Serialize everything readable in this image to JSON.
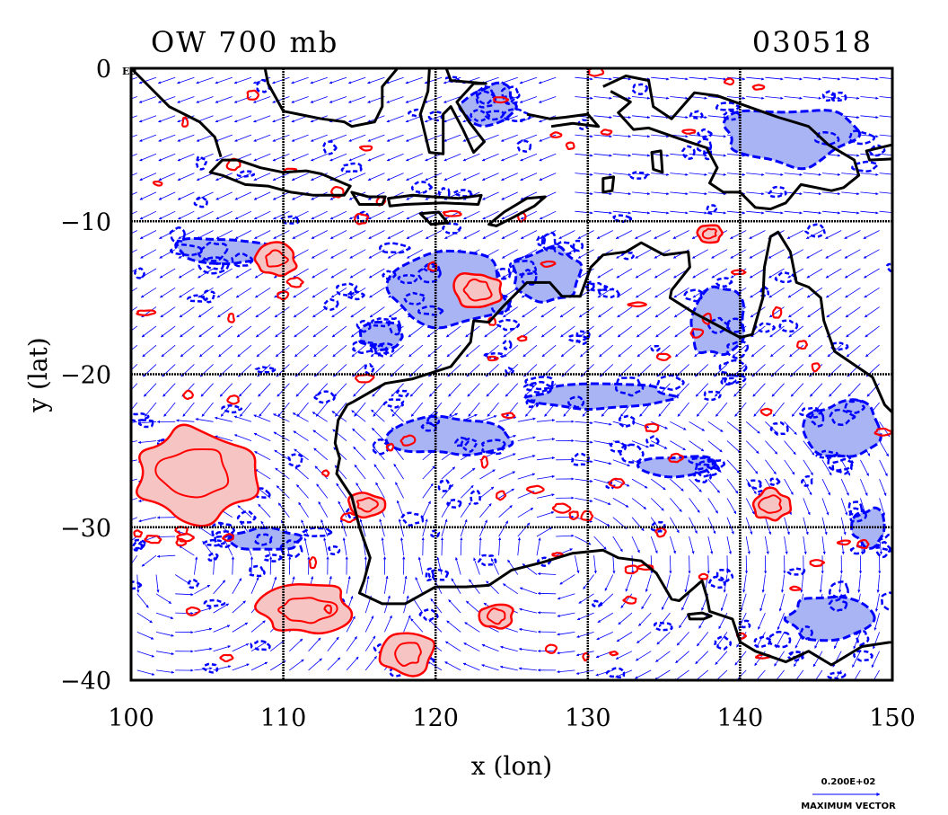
{
  "plot": {
    "title": "OW 700 mb",
    "date": "030518",
    "xlabel": "x (lon)",
    "ylabel": "y (lat)",
    "origin_label": "E0",
    "vector_legend_value": "0.200E+02",
    "vector_legend_label": "MAXIMUM VECTOR"
  },
  "colors": {
    "coastline": "#000000",
    "negative_contour": "#0000ff",
    "negative_fill": "#a9b4f5",
    "positive_contour": "#ff0000",
    "positive_fill": "#f7c4c4",
    "vectors": "#0000ff",
    "grid": "#000000"
  },
  "chart_data": {
    "type": "contour-map",
    "xlim": [
      100,
      150
    ],
    "ylim": [
      -40,
      0
    ],
    "xticks": [
      100,
      110,
      120,
      130,
      140,
      150
    ],
    "xtick_labels": [
      "100",
      "110",
      "120",
      "130",
      "140",
      "150"
    ],
    "yticks": [
      0,
      -10,
      -20,
      -30,
      -40
    ],
    "ytick_labels": [
      "0",
      "−10",
      "−20",
      "−30",
      "−40"
    ],
    "grid": true,
    "grid_style": "dotted",
    "fields": [
      "Okubo-Weiss parameter contours",
      "wind vectors"
    ],
    "positive_regions": [
      {
        "lon": 122.8,
        "lat": -14.5,
        "rx": 1.6,
        "ry": 1.3
      },
      {
        "lon": 104.2,
        "lat": -26.5,
        "rx": 4.2,
        "ry": 3.2
      },
      {
        "lon": 111.5,
        "lat": -35.4,
        "rx": 3.2,
        "ry": 1.7
      },
      {
        "lon": 118.2,
        "lat": -38.2,
        "rx": 1.8,
        "ry": 1.5
      },
      {
        "lon": 124.0,
        "lat": -35.8,
        "rx": 1.2,
        "ry": 0.9
      },
      {
        "lon": 109.5,
        "lat": -12.5,
        "rx": 1.4,
        "ry": 1.0
      },
      {
        "lon": 142.0,
        "lat": -28.5,
        "rx": 1.3,
        "ry": 1.0
      },
      {
        "lon": 138.0,
        "lat": -10.8,
        "rx": 0.8,
        "ry": 0.6
      },
      {
        "lon": 115.5,
        "lat": -28.5,
        "rx": 1.2,
        "ry": 0.8
      }
    ],
    "negative_regions": [
      {
        "lon": 121.0,
        "lat": -14.5,
        "rx": 4.0,
        "ry": 2.5
      },
      {
        "lon": 127.5,
        "lat": -13.5,
        "rx": 2.5,
        "ry": 1.8
      },
      {
        "lon": 106.0,
        "lat": -12.0,
        "rx": 3.5,
        "ry": 1.0
      },
      {
        "lon": 143.0,
        "lat": -4.5,
        "rx": 4.5,
        "ry": 2.0
      },
      {
        "lon": 123.5,
        "lat": -2.5,
        "rx": 2.0,
        "ry": 1.5
      },
      {
        "lon": 138.5,
        "lat": -16.5,
        "rx": 2.0,
        "ry": 2.5
      },
      {
        "lon": 131.0,
        "lat": -21.5,
        "rx": 5.0,
        "ry": 0.8
      },
      {
        "lon": 121.0,
        "lat": -24.0,
        "rx": 4.0,
        "ry": 1.2
      },
      {
        "lon": 136.0,
        "lat": -26.0,
        "rx": 2.5,
        "ry": 0.7
      },
      {
        "lon": 147.0,
        "lat": -23.5,
        "rx": 2.5,
        "ry": 2.0
      },
      {
        "lon": 109.0,
        "lat": -30.8,
        "rx": 2.5,
        "ry": 0.7
      },
      {
        "lon": 146.0,
        "lat": -36.0,
        "rx": 3.0,
        "ry": 1.5
      },
      {
        "lon": 116.5,
        "lat": -17.5,
        "rx": 1.5,
        "ry": 0.9
      },
      {
        "lon": 148.5,
        "lat": -30.0,
        "rx": 1.2,
        "ry": 1.2
      }
    ],
    "coastlines": [
      {
        "name": "Australia",
        "closed": true,
        "points": [
          [
            114.2,
            -22.0
          ],
          [
            114.6,
            -21.8
          ],
          [
            116.7,
            -20.6
          ],
          [
            118.5,
            -20.3
          ],
          [
            121.0,
            -19.5
          ],
          [
            122.3,
            -17.9
          ],
          [
            122.5,
            -16.5
          ],
          [
            123.5,
            -16.6
          ],
          [
            124.5,
            -15.5
          ],
          [
            126.0,
            -14.0
          ],
          [
            127.5,
            -14.0
          ],
          [
            128.3,
            -14.9
          ],
          [
            129.5,
            -14.9
          ],
          [
            130.2,
            -13.0
          ],
          [
            131.0,
            -12.2
          ],
          [
            132.5,
            -12.0
          ],
          [
            133.5,
            -11.4
          ],
          [
            135.0,
            -12.2
          ],
          [
            136.6,
            -12.0
          ],
          [
            136.7,
            -13.0
          ],
          [
            135.5,
            -14.5
          ],
          [
            135.4,
            -15.0
          ],
          [
            137.0,
            -16.0
          ],
          [
            138.5,
            -16.8
          ],
          [
            140.0,
            -17.6
          ],
          [
            140.8,
            -17.4
          ],
          [
            141.5,
            -15.0
          ],
          [
            141.6,
            -13.0
          ],
          [
            142.0,
            -11.0
          ],
          [
            142.5,
            -10.7
          ],
          [
            143.3,
            -12.0
          ],
          [
            143.7,
            -14.0
          ],
          [
            144.5,
            -14.3
          ],
          [
            145.3,
            -15.0
          ],
          [
            145.5,
            -16.5
          ],
          [
            146.2,
            -18.5
          ],
          [
            148.7,
            -20.2
          ],
          [
            149.5,
            -22.0
          ],
          [
            150.0,
            -22.5
          ],
          [
            150.8,
            -23.5
          ],
          [
            153.0,
            -25.5
          ],
          [
            153.6,
            -28.5
          ],
          [
            153.0,
            -31.0
          ],
          [
            152.0,
            -33.0
          ],
          [
            150.8,
            -34.5
          ],
          [
            150.0,
            -37.5
          ],
          [
            148.0,
            -37.8
          ],
          [
            146.0,
            -39.0
          ],
          [
            144.5,
            -38.1
          ],
          [
            143.0,
            -38.8
          ],
          [
            141.0,
            -38.1
          ],
          [
            140.0,
            -37.5
          ],
          [
            139.5,
            -36.0
          ],
          [
            138.0,
            -35.5
          ],
          [
            137.8,
            -34.5
          ],
          [
            137.5,
            -33.5
          ],
          [
            136.0,
            -34.8
          ],
          [
            135.5,
            -34.7
          ],
          [
            134.5,
            -33.0
          ],
          [
            133.5,
            -32.2
          ],
          [
            132.0,
            -32.0
          ],
          [
            131.0,
            -31.5
          ],
          [
            129.0,
            -31.7
          ],
          [
            127.0,
            -32.3
          ],
          [
            125.0,
            -32.8
          ],
          [
            123.5,
            -33.8
          ],
          [
            122.0,
            -33.9
          ],
          [
            120.0,
            -33.9
          ],
          [
            118.0,
            -35.0
          ],
          [
            116.5,
            -35.0
          ],
          [
            115.0,
            -34.3
          ],
          [
            115.3,
            -33.5
          ],
          [
            115.7,
            -32.0
          ],
          [
            115.0,
            -30.0
          ],
          [
            114.5,
            -28.0
          ],
          [
            113.5,
            -26.5
          ],
          [
            113.7,
            -25.5
          ],
          [
            113.4,
            -24.5
          ],
          [
            113.6,
            -23.0
          ]
        ]
      },
      {
        "name": "Tasmania",
        "closed": true,
        "points": [
          [
            144.7,
            -40.7
          ],
          [
            146.5,
            -41.0
          ],
          [
            148.3,
            -40.9
          ],
          [
            148.2,
            -42.0
          ],
          [
            147.5,
            -43.2
          ],
          [
            146.0,
            -43.5
          ],
          [
            145.2,
            -42.3
          ]
        ]
      },
      {
        "name": "Kangaroo Island",
        "closed": true,
        "points": [
          [
            136.6,
            -35.7
          ],
          [
            137.5,
            -35.6
          ],
          [
            138.1,
            -35.8
          ],
          [
            137.6,
            -36.0
          ],
          [
            136.7,
            -36.0
          ]
        ]
      },
      {
        "name": "Sumatra",
        "closed": false,
        "points": [
          [
            100.0,
            0.0
          ],
          [
            100.5,
            -0.5
          ],
          [
            101.5,
            -1.5
          ],
          [
            102.5,
            -2.5
          ],
          [
            103.5,
            -3.0
          ],
          [
            104.5,
            -3.5
          ],
          [
            105.5,
            -4.5
          ],
          [
            105.9,
            -5.8
          ]
        ]
      },
      {
        "name": "Java",
        "closed": true,
        "points": [
          [
            105.2,
            -6.8
          ],
          [
            106.0,
            -6.0
          ],
          [
            107.0,
            -6.0
          ],
          [
            108.5,
            -6.5
          ],
          [
            110.0,
            -6.8
          ],
          [
            111.5,
            -6.7
          ],
          [
            112.5,
            -6.9
          ],
          [
            114.4,
            -7.7
          ],
          [
            114.0,
            -8.3
          ],
          [
            112.0,
            -8.3
          ],
          [
            110.5,
            -8.1
          ],
          [
            109.0,
            -7.7
          ],
          [
            107.5,
            -7.6
          ],
          [
            106.0,
            -7.0
          ]
        ]
      },
      {
        "name": "Borneo",
        "closed": false,
        "points": [
          [
            108.8,
            0.0
          ],
          [
            109.0,
            -1.0
          ],
          [
            110.0,
            -2.8
          ],
          [
            111.0,
            -3.0
          ],
          [
            112.5,
            -3.3
          ],
          [
            114.0,
            -3.5
          ],
          [
            114.5,
            -3.8
          ],
          [
            116.0,
            -3.5
          ],
          [
            116.5,
            -2.5
          ],
          [
            116.5,
            -1.2
          ],
          [
            117.5,
            0.0
          ]
        ]
      },
      {
        "name": "Sulawesi",
        "closed": false,
        "points": [
          [
            119.6,
            0.0
          ],
          [
            119.5,
            -1.5
          ],
          [
            119.0,
            -3.0
          ],
          [
            119.6,
            -5.5
          ],
          [
            120.5,
            -5.6
          ],
          [
            120.5,
            -3.0
          ],
          [
            121.0,
            -2.5
          ],
          [
            121.8,
            -4.0
          ],
          [
            122.5,
            -5.5
          ],
          [
            123.2,
            -4.8
          ],
          [
            122.2,
            -3.5
          ],
          [
            121.4,
            -2.2
          ],
          [
            122.5,
            -1.0
          ],
          [
            123.3,
            -1.0
          ],
          [
            121.0,
            -0.8
          ],
          [
            120.7,
            0.0
          ]
        ]
      },
      {
        "name": "Bali-Lombok",
        "closed": true,
        "points": [
          [
            114.5,
            -8.1
          ],
          [
            115.6,
            -8.4
          ],
          [
            116.7,
            -8.4
          ],
          [
            116.5,
            -8.9
          ],
          [
            115.0,
            -8.9
          ]
        ]
      },
      {
        "name": "Sumbawa-Flores",
        "closed": true,
        "points": [
          [
            116.9,
            -8.5
          ],
          [
            118.5,
            -8.3
          ],
          [
            119.8,
            -8.4
          ],
          [
            121.5,
            -8.5
          ],
          [
            123.0,
            -8.3
          ],
          [
            122.8,
            -8.9
          ],
          [
            120.5,
            -8.8
          ],
          [
            118.0,
            -8.9
          ],
          [
            117.0,
            -9.0
          ]
        ]
      },
      {
        "name": "Sumba",
        "closed": true,
        "points": [
          [
            119.0,
            -9.5
          ],
          [
            120.2,
            -9.4
          ],
          [
            120.8,
            -10.1
          ],
          [
            119.7,
            -10.2
          ]
        ]
      },
      {
        "name": "Timor",
        "closed": true,
        "points": [
          [
            123.5,
            -10.2
          ],
          [
            124.5,
            -9.4
          ],
          [
            126.0,
            -8.5
          ],
          [
            127.2,
            -8.4
          ],
          [
            126.5,
            -9.0
          ],
          [
            125.0,
            -9.8
          ],
          [
            124.0,
            -10.3
          ]
        ]
      },
      {
        "name": "Seram-Buru",
        "closed": false,
        "points": [
          [
            126.0,
            -3.0
          ],
          [
            127.5,
            -3.3
          ],
          [
            128.5,
            -3.2
          ],
          [
            130.0,
            -3.0
          ],
          [
            130.7,
            -3.8
          ],
          [
            129.0,
            -3.6
          ],
          [
            127.6,
            -3.8
          ]
        ]
      },
      {
        "name": "New Guinea",
        "closed": false,
        "points": [
          [
            131.0,
            -1.2
          ],
          [
            132.5,
            -0.5
          ],
          [
            134.0,
            -0.8
          ],
          [
            134.3,
            -2.5
          ],
          [
            135.5,
            -3.3
          ],
          [
            137.0,
            -1.6
          ],
          [
            138.5,
            -1.8
          ],
          [
            140.8,
            -2.6
          ],
          [
            142.5,
            -3.2
          ],
          [
            144.5,
            -3.8
          ],
          [
            145.8,
            -5.0
          ],
          [
            147.5,
            -6.0
          ],
          [
            147.8,
            -7.0
          ],
          [
            146.8,
            -7.8
          ],
          [
            146.0,
            -8.0
          ],
          [
            144.0,
            -7.6
          ],
          [
            143.0,
            -8.8
          ],
          [
            142.0,
            -9.2
          ],
          [
            141.0,
            -9.1
          ],
          [
            140.0,
            -8.1
          ],
          [
            138.9,
            -8.1
          ],
          [
            138.0,
            -7.5
          ],
          [
            138.5,
            -6.5
          ],
          [
            137.8,
            -5.2
          ],
          [
            136.0,
            -4.6
          ],
          [
            134.0,
            -3.9
          ],
          [
            133.0,
            -4.0
          ],
          [
            132.0,
            -2.9
          ],
          [
            132.8,
            -2.2
          ],
          [
            131.5,
            -1.5
          ]
        ]
      },
      {
        "name": "Aru",
        "closed": true,
        "points": [
          [
            134.2,
            -5.5
          ],
          [
            134.8,
            -5.4
          ],
          [
            134.9,
            -6.8
          ],
          [
            134.3,
            -6.6
          ]
        ]
      },
      {
        "name": "Tanimbar",
        "closed": true,
        "points": [
          [
            131.0,
            -7.2
          ],
          [
            131.7,
            -7.1
          ],
          [
            131.6,
            -8.0
          ],
          [
            131.0,
            -8.1
          ]
        ]
      },
      {
        "name": "New Britain",
        "closed": true,
        "points": [
          [
            148.3,
            -5.4
          ],
          [
            150.0,
            -5.0
          ],
          [
            151.5,
            -4.5
          ],
          [
            151.9,
            -5.0
          ],
          [
            150.5,
            -5.9
          ],
          [
            148.5,
            -6.0
          ]
        ]
      }
    ],
    "vector_legend_max": 20
  }
}
